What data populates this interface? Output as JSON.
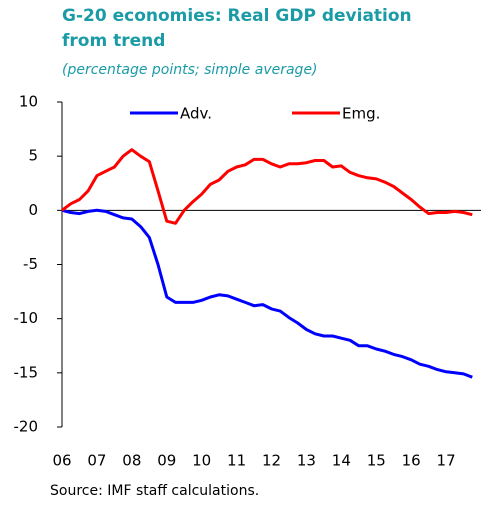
{
  "chart_data": {
    "type": "line",
    "title": "G-20 economies: Real GDP deviation from trend",
    "subtitle": "(percentage points; simple average)",
    "source": "Source: IMF staff calculations.",
    "x": [
      2006,
      2006.25,
      2006.5,
      2006.75,
      2007,
      2007.25,
      2007.5,
      2007.75,
      2008,
      2008.25,
      2008.5,
      2008.75,
      2009,
      2009.25,
      2009.5,
      2009.75,
      2010,
      2010.25,
      2010.5,
      2010.75,
      2011,
      2011.25,
      2011.5,
      2011.75,
      2012,
      2012.25,
      2012.5,
      2012.75,
      2013,
      2013.25,
      2013.5,
      2013.75,
      2014,
      2014.25,
      2014.5,
      2014.75,
      2015,
      2015.25,
      2015.5,
      2015.75,
      2016,
      2016.25,
      2016.5,
      2016.75,
      2017,
      2017.25,
      2017.5,
      2017.75
    ],
    "series": [
      {
        "name": "Adv.",
        "color": "#0000ff",
        "values": [
          0,
          -0.2,
          -0.3,
          -0.1,
          0,
          -0.1,
          -0.4,
          -0.7,
          -0.8,
          -1.5,
          -2.5,
          -5,
          -8,
          -8.5,
          -8.5,
          -8.5,
          -8.3,
          -8,
          -7.8,
          -7.9,
          -8.2,
          -8.5,
          -8.8,
          -8.7,
          -9.1,
          -9.3,
          -9.9,
          -10.4,
          -11,
          -11.4,
          -11.6,
          -11.6,
          -11.8,
          -12,
          -12.5,
          -12.5,
          -12.8,
          -13,
          -13.3,
          -13.5,
          -13.8,
          -14.2,
          -14.4,
          -14.7,
          -14.9,
          -15,
          -15.1,
          -15.4
        ]
      },
      {
        "name": "Emg.",
        "color": "#ff0000",
        "values": [
          0,
          0.6,
          1,
          1.8,
          3.2,
          3.6,
          4,
          5,
          5.6,
          5,
          4.5,
          1.8,
          -1,
          -1.2,
          0,
          0.8,
          1.5,
          2.4,
          2.8,
          3.6,
          4,
          4.2,
          4.7,
          4.7,
          4.3,
          4,
          4.3,
          4.3,
          4.4,
          4.6,
          4.6,
          4,
          4.1,
          3.5,
          3.2,
          3,
          2.9,
          2.6,
          2.2,
          1.6,
          1,
          0.3,
          -0.3,
          -0.2,
          -0.2,
          -0.1,
          -0.2,
          -0.4
        ]
      }
    ],
    "xlim": [
      2006,
      2018
    ],
    "xticks": [
      {
        "value": 2006,
        "label": "06"
      },
      {
        "value": 2007,
        "label": "07"
      },
      {
        "value": 2008,
        "label": "08"
      },
      {
        "value": 2009,
        "label": "09"
      },
      {
        "value": 2010,
        "label": "10"
      },
      {
        "value": 2011,
        "label": "11"
      },
      {
        "value": 2012,
        "label": "12"
      },
      {
        "value": 2013,
        "label": "13"
      },
      {
        "value": 2014,
        "label": "14"
      },
      {
        "value": 2015,
        "label": "15"
      },
      {
        "value": 2016,
        "label": "16"
      },
      {
        "value": 2017,
        "label": "17"
      }
    ],
    "ylim": [
      -20,
      10
    ],
    "yticks": [
      10,
      5,
      0,
      -5,
      -10,
      -15,
      -20
    ],
    "legend": "top",
    "grid": false
  }
}
